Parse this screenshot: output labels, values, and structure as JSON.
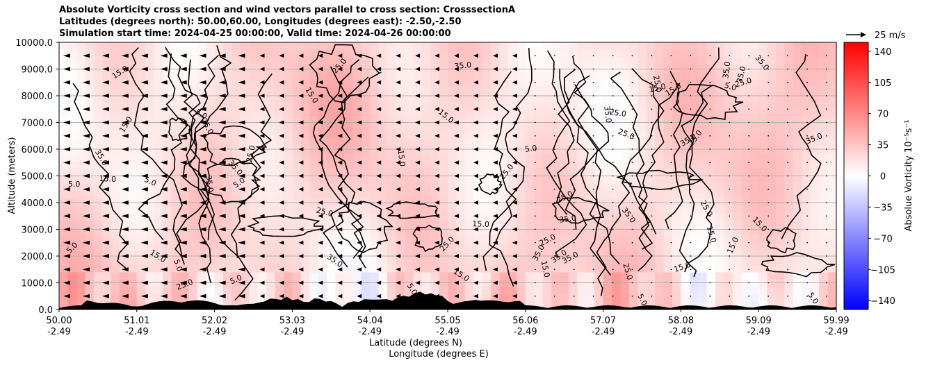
{
  "chart_data": {
    "type": "heatmap",
    "title_lines": [
      "Absolute Vorticity cross section and wind vectors parallel to cross section: CrosssectionA",
      "Latitudes (degrees north): 50.00,60.00, Longitudes (degrees east): -2.50,-2.50",
      "Simulation start time: 2024-04-25 00:00:00, Valid time: 2024-04-26 00:00:00"
    ],
    "xlabel_lines": [
      "Latitude (degrees N)",
      "Longitude (degrees E)"
    ],
    "ylabel": "Altitude (meters)",
    "x_ticks": [
      {
        "lat": "50.00",
        "lon": "-2.49"
      },
      {
        "lat": "51.01",
        "lon": "-2.49"
      },
      {
        "lat": "52.02",
        "lon": "-2.49"
      },
      {
        "lat": "53.03",
        "lon": "-2.49"
      },
      {
        "lat": "54.04",
        "lon": "-2.49"
      },
      {
        "lat": "55.05",
        "lon": "-2.49"
      },
      {
        "lat": "56.06",
        "lon": "-2.49"
      },
      {
        "lat": "57.07",
        "lon": "-2.49"
      },
      {
        "lat": "58.08",
        "lon": "-2.49"
      },
      {
        "lat": "59.09",
        "lon": "-2.49"
      },
      {
        "lat": "59.99",
        "lon": "-2.49"
      }
    ],
    "xlim": [
      50.0,
      59.99
    ],
    "y_ticks": [
      "0.0",
      "1000.0",
      "2000.0",
      "3000.0",
      "4000.0",
      "5000.0",
      "6000.0",
      "7000.0",
      "8000.0",
      "9000.0",
      "10000.0"
    ],
    "ylim": [
      0,
      10000
    ],
    "grid": "horizontal",
    "colorbar": {
      "label": "Absolue Vorticity 10⁻⁵s⁻¹",
      "ticks": [
        "140",
        "105",
        "70",
        "35",
        "0",
        "−35",
        "−70",
        "−105",
        "−140"
      ],
      "range": [
        -150,
        150
      ],
      "colors": {
        "neg": "#0000ff",
        "zero": "#ffffff",
        "pos": "#ff0000"
      }
    },
    "quiver_key": "25 m/s",
    "contour_labels": [
      "5.0",
      "15.0",
      "25.0",
      "35.0"
    ],
    "contour_levels": [
      5,
      15,
      25,
      35
    ]
  }
}
